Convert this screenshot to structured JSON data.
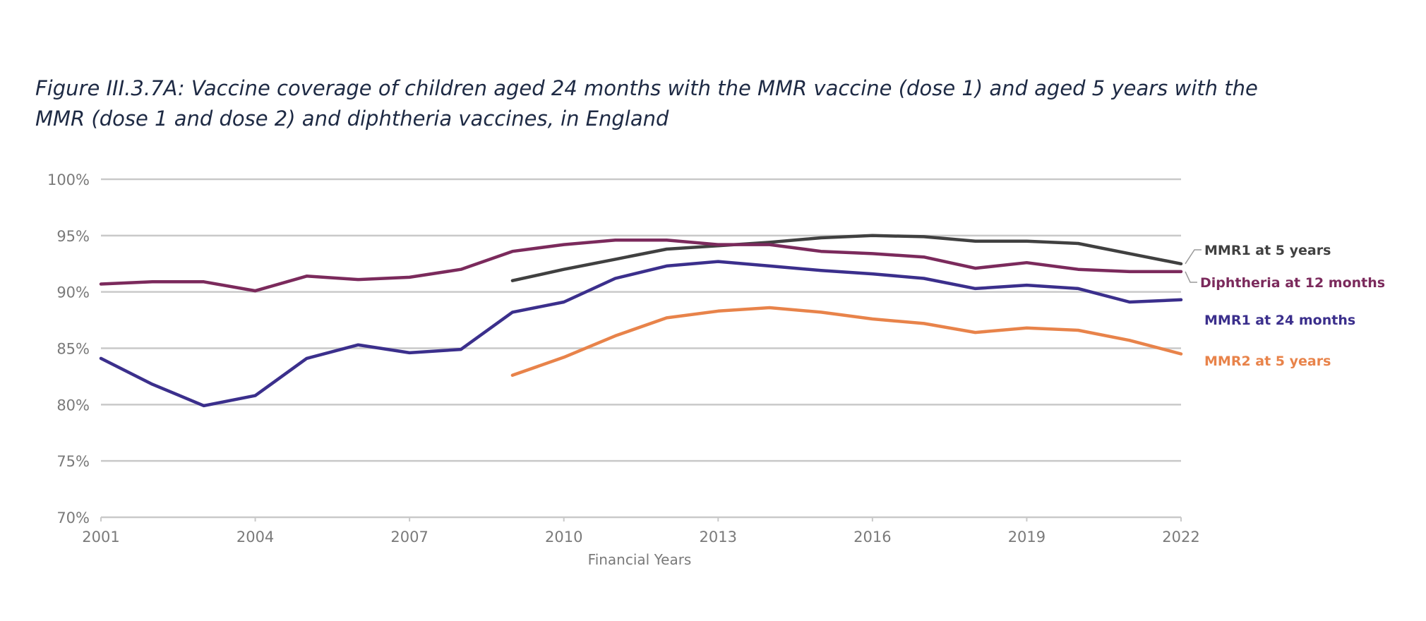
{
  "title_line1": "Figure III.3.7A: Vaccine coverage of children aged 24 months with the MMR vaccine (dose 1) and aged 5 years with the",
  "title_line2": "MMR (dose 1 and dose 2) and diphtheria vaccines, in England",
  "chart_data": {
    "type": "line",
    "xlabel": "Financial Years",
    "ylabel": "",
    "xlim": [
      2001,
      2022
    ],
    "ylim": [
      70,
      100
    ],
    "xticks": [
      2001,
      2004,
      2007,
      2010,
      2013,
      2016,
      2019,
      2022
    ],
    "xtick_labels": [
      "2001",
      "2004",
      "2007",
      "2010",
      "2013",
      "2016",
      "2019",
      "2022"
    ],
    "yticks": [
      70,
      75,
      80,
      85,
      90,
      95,
      100
    ],
    "ytick_labels": [
      "70%",
      "75%",
      "80%",
      "85%",
      "90%",
      "95%",
      "100%"
    ],
    "grid": "horizontal",
    "series": [
      {
        "name": "MMR1 at 5 years",
        "color": "#404040",
        "x": [
          2009,
          2010,
          2011,
          2012,
          2013,
          2014,
          2015,
          2016,
          2017,
          2018,
          2019,
          2020,
          2021,
          2022
        ],
        "values": [
          91.0,
          92.0,
          92.9,
          93.8,
          94.1,
          94.4,
          94.8,
          95.0,
          94.9,
          94.5,
          94.5,
          94.3,
          93.4,
          92.5
        ]
      },
      {
        "name": "Diphtheria at 12 months",
        "color": "#7b2a5c",
        "x": [
          2001,
          2002,
          2003,
          2004,
          2005,
          2006,
          2007,
          2008,
          2009,
          2010,
          2011,
          2012,
          2013,
          2014,
          2015,
          2016,
          2017,
          2018,
          2019,
          2020,
          2021,
          2022
        ],
        "values": [
          90.7,
          90.9,
          90.9,
          90.1,
          91.4,
          91.1,
          91.3,
          92.0,
          93.6,
          94.2,
          94.6,
          94.6,
          94.2,
          94.2,
          93.6,
          93.4,
          93.1,
          92.1,
          92.6,
          92.0,
          91.8,
          91.8
        ]
      },
      {
        "name": "MMR1 at 24 months",
        "color": "#3b2f8c",
        "x": [
          2001,
          2002,
          2003,
          2004,
          2005,
          2006,
          2007,
          2008,
          2009,
          2010,
          2011,
          2012,
          2013,
          2014,
          2015,
          2016,
          2017,
          2018,
          2019,
          2020,
          2021,
          2022
        ],
        "values": [
          84.1,
          81.8,
          79.9,
          80.8,
          84.1,
          85.3,
          84.6,
          84.9,
          88.2,
          89.1,
          91.2,
          92.3,
          92.7,
          92.3,
          91.9,
          91.6,
          91.2,
          90.3,
          90.6,
          90.3,
          89.1,
          89.3
        ]
      },
      {
        "name": "MMR2 at 5 years",
        "color": "#e8834a",
        "x": [
          2009,
          2010,
          2011,
          2012,
          2013,
          2014,
          2015,
          2016,
          2017,
          2018,
          2019,
          2020,
          2021,
          2022
        ],
        "values": [
          82.6,
          84.2,
          86.1,
          87.7,
          88.3,
          88.6,
          88.2,
          87.6,
          87.2,
          86.4,
          86.8,
          86.6,
          85.7,
          84.5
        ]
      }
    ]
  }
}
